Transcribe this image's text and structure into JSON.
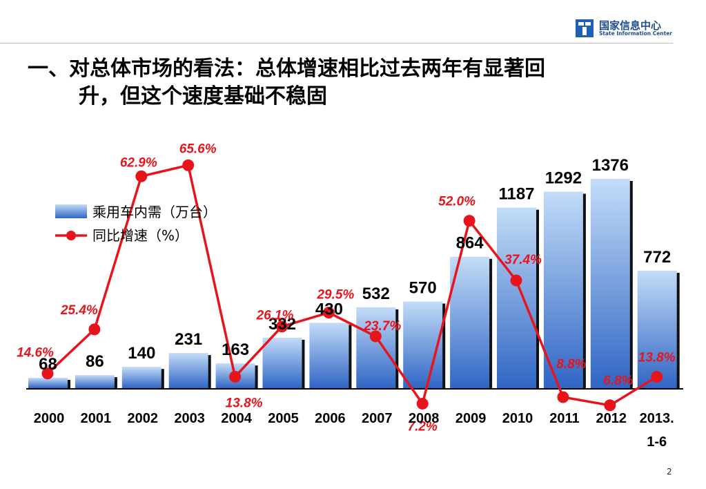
{
  "logo": {
    "cn": "国家信息中心",
    "en": "State Information Center",
    "icon": "state-info-center-logo"
  },
  "title_line1": "一、对总体市场的看法：总体增速相比过去两年有显著回",
  "title_line2": "升，但这个速度基础不稳固",
  "page_number": "2",
  "colors": {
    "bar_light": "#c3dcf8",
    "bar_dark": "#2f65c4",
    "line": "#e8141c",
    "growth_label": "#e8141c"
  },
  "chart_data": {
    "type": "bar+line",
    "categories": [
      "2000",
      "2001",
      "2002",
      "2003",
      "2004",
      "2005",
      "2006",
      "2007",
      "2008",
      "2009",
      "2010",
      "2011",
      "2012",
      "2013.\n1-6"
    ],
    "series": [
      {
        "name": "乘用车内需（万台）",
        "type": "bar",
        "values": [
          68,
          86,
          140,
          231,
          163,
          332,
          430,
          532,
          570,
          864,
          1187,
          1292,
          1376,
          772
        ],
        "value_labels": [
          "68",
          "86",
          "140",
          "231",
          "163",
          "332",
          "430",
          "532",
          "570",
          "864",
          "1187",
          "1292",
          "1376",
          "772"
        ]
      },
      {
        "name": "同比增速（%）",
        "type": "line",
        "values": [
          14.6,
          25.4,
          62.9,
          65.6,
          13.8,
          26.1,
          29.5,
          23.7,
          7.2,
          52.0,
          37.4,
          8.8,
          6.8,
          13.8
        ],
        "value_labels": [
          "14.6%",
          "25.4%",
          "62.9%",
          "65.6%",
          "13.8%",
          "26.1%",
          "29.5%",
          "23.7%",
          "7.2%",
          "52.0%",
          "37.4%",
          "8.8%",
          "6.8%",
          "13.8%"
        ]
      }
    ],
    "legend": [
      "乘用车内需（万台）",
      "同比增速（%）"
    ],
    "legend_position": "top-left",
    "grid": false
  }
}
